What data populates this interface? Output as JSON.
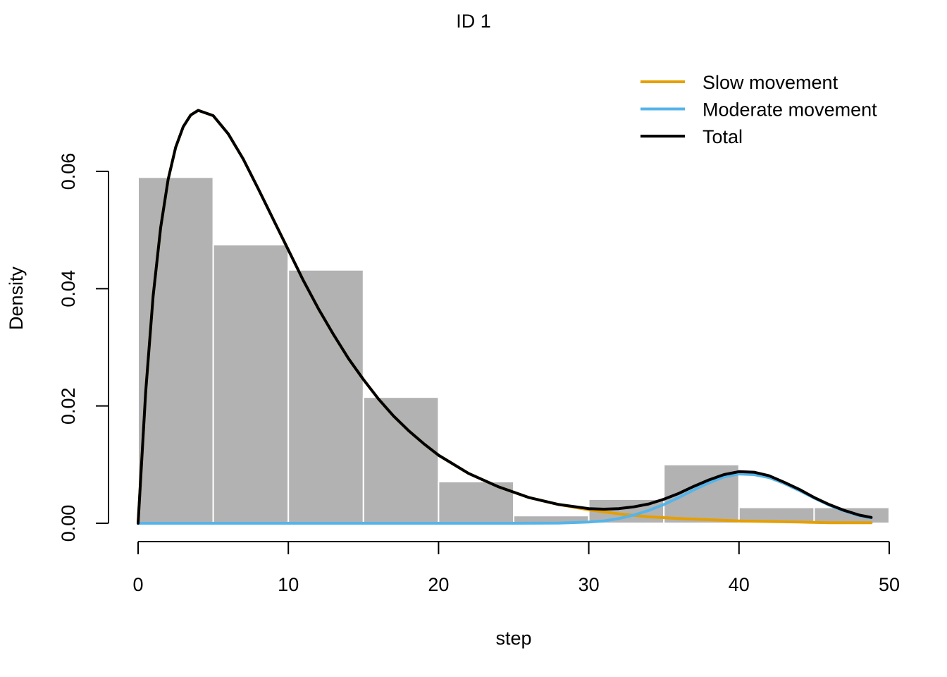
{
  "chart_data": {
    "type": "bar",
    "title": "ID 1",
    "xlabel": "step",
    "ylabel": "Density",
    "xlim": [
      0,
      50
    ],
    "ylim": [
      0,
      0.07
    ],
    "x_ticks": [
      0,
      10,
      20,
      30,
      40,
      50
    ],
    "x_tick_labels": [
      "0",
      "10",
      "20",
      "30",
      "40",
      "50"
    ],
    "y_ticks": [
      0,
      0.02,
      0.04,
      0.06
    ],
    "y_tick_labels": [
      "0.00",
      "0.02",
      "0.04",
      "0.06"
    ],
    "grid": false,
    "legend_position": "top-right",
    "histogram": {
      "bin_edges": [
        0,
        5,
        10,
        15,
        20,
        25,
        30,
        35,
        40,
        45,
        50
      ],
      "density": [
        0.059,
        0.0475,
        0.0432,
        0.0215,
        0.0071,
        0.0013,
        0.0041,
        0.01,
        0.0027,
        0.0027
      ],
      "color": "#b2b2b2"
    },
    "series": [
      {
        "name": "Slow movement",
        "color": "#e69f00",
        "x": [
          0,
          0.5,
          1,
          1.5,
          2,
          2.5,
          3,
          3.5,
          4,
          5,
          6,
          7,
          8,
          9,
          10,
          11,
          12,
          13,
          14,
          15,
          16,
          17,
          18,
          19,
          20,
          22,
          24,
          26,
          28,
          30,
          32,
          34,
          36,
          38,
          40,
          42,
          44,
          46,
          48,
          48.8
        ],
        "values": [
          0,
          0.0223,
          0.0387,
          0.0504,
          0.0586,
          0.0641,
          0.0676,
          0.0696,
          0.0704,
          0.0695,
          0.0664,
          0.0621,
          0.057,
          0.0518,
          0.0466,
          0.0414,
          0.0366,
          0.0322,
          0.0281,
          0.0245,
          0.0212,
          0.0183,
          0.0158,
          0.0136,
          0.0116,
          0.0085,
          0.0062,
          0.0044,
          0.0032,
          0.0023,
          0.0016,
          0.0011,
          0.0008,
          0.0006,
          0.0004,
          0.0003,
          0.0002,
          0.0001,
          0.0001,
          0.0001
        ]
      },
      {
        "name": "Moderate movement",
        "color": "#56b4e9",
        "x": [
          0,
          10,
          20,
          25,
          28,
          30,
          31,
          32,
          33,
          34,
          35,
          36,
          37,
          38,
          39,
          40,
          41,
          42,
          43,
          44,
          45,
          46,
          47,
          48,
          48.8
        ],
        "values": [
          0,
          0,
          0,
          0,
          4e-05,
          0.0002,
          0.0004,
          0.0008,
          0.0014,
          0.0022,
          0.0032,
          0.0044,
          0.0057,
          0.0069,
          0.0079,
          0.0084,
          0.0083,
          0.0078,
          0.0068,
          0.0056,
          0.0043,
          0.0031,
          0.0021,
          0.0013,
          0.0009
        ]
      },
      {
        "name": "Total",
        "color": "#000000",
        "x": [
          0,
          0.5,
          1,
          1.5,
          2,
          2.5,
          3,
          3.5,
          4,
          5,
          6,
          7,
          8,
          9,
          10,
          11,
          12,
          13,
          14,
          15,
          16,
          17,
          18,
          19,
          20,
          22,
          24,
          26,
          28,
          30,
          31,
          32,
          33,
          34,
          35,
          36,
          37,
          38,
          39,
          40,
          41,
          42,
          43,
          44,
          45,
          46,
          47,
          48,
          48.8
        ],
        "values": [
          0,
          0.0223,
          0.0387,
          0.0504,
          0.0586,
          0.0641,
          0.0676,
          0.0696,
          0.0704,
          0.0695,
          0.0664,
          0.0621,
          0.057,
          0.0518,
          0.0466,
          0.0414,
          0.0366,
          0.0322,
          0.0281,
          0.0245,
          0.0212,
          0.0183,
          0.0158,
          0.0136,
          0.0116,
          0.0085,
          0.0062,
          0.0044,
          0.0032,
          0.0025,
          0.0024,
          0.0025,
          0.0028,
          0.0033,
          0.0041,
          0.0051,
          0.0063,
          0.0074,
          0.0083,
          0.0088,
          0.0087,
          0.0081,
          0.007,
          0.0058,
          0.0044,
          0.0032,
          0.0022,
          0.0014,
          0.001
        ]
      }
    ]
  }
}
